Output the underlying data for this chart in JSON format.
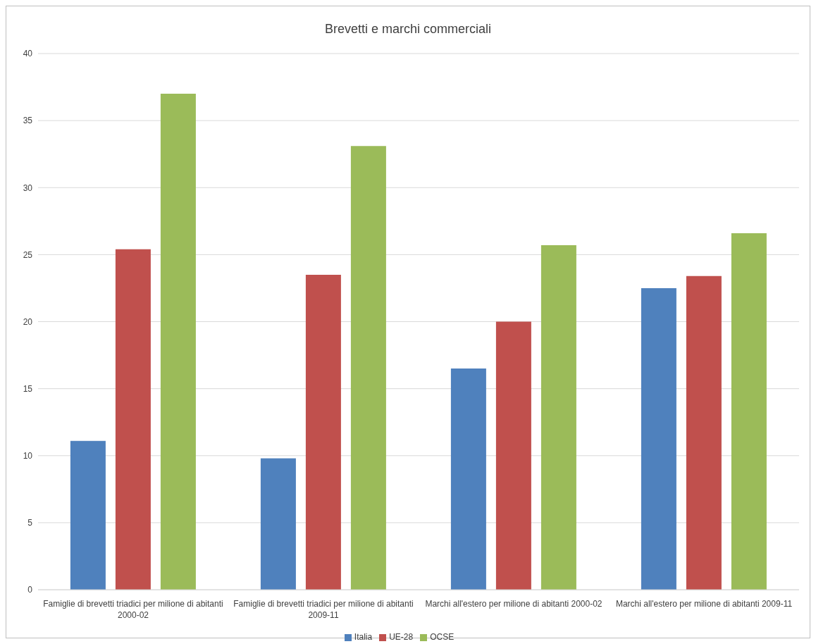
{
  "chart_data": {
    "type": "bar",
    "title": "Brevetti e marchi commerciali",
    "categories": [
      "Famiglie di brevetti triadici per milione di abitanti 2000-02",
      "Famiglie di brevetti triadici per milione di abitanti 2009-11",
      "Marchi all'estero per milione di abitanti 2000-02",
      "Marchi all'estero per milione di abitanti 2009-11"
    ],
    "series": [
      {
        "name": "Italia",
        "color": "#4f81bd",
        "values": [
          11.1,
          9.8,
          16.5,
          22.5
        ]
      },
      {
        "name": "UE-28",
        "color": "#c0504d",
        "values": [
          25.4,
          23.5,
          20.0,
          23.4
        ]
      },
      {
        "name": "OCSE",
        "color": "#9bbb59",
        "values": [
          37.0,
          33.1,
          25.7,
          26.6
        ]
      }
    ],
    "ylim": [
      0,
      40
    ],
    "yticks": [
      0,
      5,
      10,
      15,
      20,
      25,
      30,
      35,
      40
    ],
    "grid": "y",
    "legend": "bottom"
  }
}
